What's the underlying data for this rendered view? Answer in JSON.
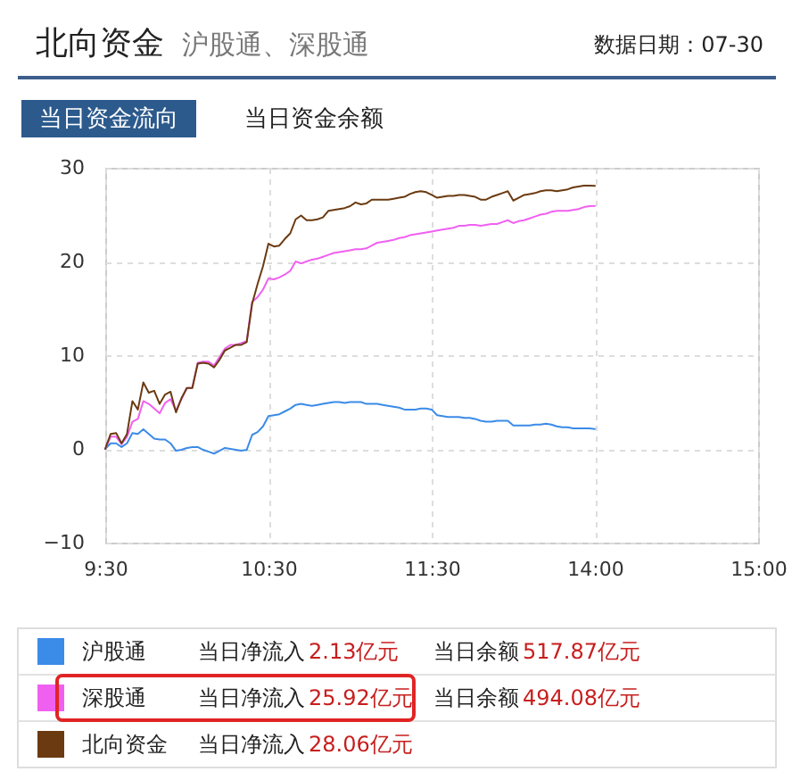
{
  "chart_data": {
    "type": "line",
    "title": "北向资金",
    "subtitle": "沪股通、深股通",
    "annotations": [
      "数据日期：07-30",
      "当日资金流向",
      "当日资金余额",
      "当日净流入",
      "2.13亿元",
      "当日余额",
      "517.87亿元",
      "当日净流入",
      "25.92亿元",
      "当日余额",
      "494.08亿元",
      "当日净流入",
      "28.06亿元"
    ],
    "categories": [
      "9:30",
      null,
      null,
      null,
      null,
      null,
      null,
      null,
      null,
      null,
      null,
      null,
      null,
      null,
      null,
      null,
      null,
      null,
      null,
      null,
      null,
      null,
      null,
      null,
      null,
      null,
      null,
      null,
      null,
      null,
      "10:30",
      null,
      null,
      null,
      null,
      null,
      null,
      null,
      null,
      null,
      null,
      null,
      null,
      null,
      null,
      null,
      null,
      null,
      null,
      null,
      null,
      null,
      null,
      null,
      null,
      null,
      null,
      null,
      null,
      null,
      "11:30",
      null,
      null,
      null,
      null,
      null,
      null,
      null,
      null,
      null,
      null,
      null,
      null,
      null,
      null,
      null,
      null,
      null,
      null,
      null,
      null,
      null,
      null,
      null,
      null,
      null,
      null,
      null,
      null,
      null,
      "14:00",
      null,
      null,
      null,
      null,
      null,
      null,
      null,
      null,
      null,
      null,
      null,
      null,
      null,
      null,
      null,
      null,
      null,
      null,
      null,
      null,
      null,
      null,
      null,
      null,
      null,
      null,
      null,
      null,
      null,
      "15:00"
    ],
    "ylim": [
      -10,
      30
    ],
    "yticks": [
      -10,
      0,
      10,
      20,
      30
    ],
    "grid": true,
    "legend": "bottom",
    "series": [
      {
        "name": "沪股通",
        "color": "#3b8be8",
        "values": [
          0,
          0.6,
          0.6,
          0.2,
          0.6,
          1.7,
          1.6,
          2.1,
          1.6,
          1.1,
          1.0,
          1.0,
          0.6,
          -0.2,
          -0.1,
          0.1,
          0.2,
          0.2,
          -0.1,
          -0.3,
          -0.5,
          -0.2,
          0.1,
          0,
          -0.1,
          -0.2,
          -0.1,
          1.5,
          1.8,
          2.4,
          3.5,
          3.6,
          3.7,
          4.0,
          4.3,
          4.7,
          4.8,
          4.7,
          4.6,
          4.7,
          4.8,
          4.9,
          5.0,
          5.0,
          4.9,
          5.0,
          5.0,
          5.0,
          4.8,
          4.8,
          4.8,
          4.7,
          4.6,
          4.5,
          4.4,
          4.2,
          4.2,
          4.2,
          4.3,
          4.3,
          4.2,
          3.6,
          3.5,
          3.4,
          3.4,
          3.4,
          3.3,
          3.3,
          3.2,
          3.0,
          2.9,
          2.9,
          3.0,
          3.0,
          3.0,
          2.5,
          2.5,
          2.5,
          2.5,
          2.6,
          2.6,
          2.7,
          2.6,
          2.4,
          2.3,
          2.3,
          2.2,
          2.2,
          2.2,
          2.2,
          2.13,
          null,
          null,
          null,
          null,
          null,
          null,
          null,
          null,
          null,
          null,
          null,
          null,
          null,
          null,
          null,
          null,
          null,
          null,
          null,
          null,
          null,
          null,
          null,
          null,
          null,
          null,
          null,
          null,
          null,
          null
        ]
      },
      {
        "name": "深股通",
        "color": "#f060f0",
        "values": [
          0,
          1.3,
          1.3,
          0.5,
          1.3,
          2.9,
          3.2,
          5.1,
          4.8,
          4.3,
          3.8,
          4.9,
          5.3,
          4.1,
          5.3,
          6.5,
          6.5,
          9.2,
          9.3,
          9.3,
          8.9,
          9.8,
          10.7,
          11.1,
          11.1,
          11.3,
          11.5,
          15.7,
          16.2,
          17.0,
          18.2,
          18.1,
          18.3,
          18.6,
          19.0,
          20.0,
          19.8,
          20.0,
          20.2,
          20.3,
          20.5,
          20.7,
          20.9,
          21.0,
          21.1,
          21.2,
          21.3,
          21.3,
          21.4,
          21.7,
          22.0,
          22.1,
          22.2,
          22.3,
          22.5,
          22.6,
          22.8,
          22.9,
          23.0,
          23.1,
          23.2,
          23.3,
          23.4,
          23.5,
          23.6,
          23.8,
          23.8,
          23.9,
          23.9,
          23.8,
          23.9,
          24.0,
          24.0,
          24.2,
          24.4,
          24.1,
          24.3,
          24.4,
          24.6,
          24.8,
          25.0,
          25.1,
          25.3,
          25.4,
          25.4,
          25.4,
          25.5,
          25.6,
          25.8,
          25.9,
          25.92,
          null,
          null,
          null,
          null,
          null,
          null,
          null,
          null,
          null,
          null,
          null,
          null,
          null,
          null,
          null,
          null,
          null,
          null,
          null,
          null,
          null,
          null,
          null,
          null,
          null,
          null,
          null,
          null,
          null,
          null
        ]
      },
      {
        "name": "北向资金",
        "color": "#6b3a10",
        "values": [
          0,
          1.6,
          1.7,
          0.6,
          1.6,
          5.1,
          4.2,
          7.1,
          6.0,
          6.2,
          4.8,
          5.8,
          6.1,
          3.9,
          5.4,
          6.5,
          6.5,
          9.1,
          9.2,
          9.1,
          8.7,
          9.5,
          10.5,
          10.8,
          11.1,
          11.1,
          11.4,
          15.5,
          17.6,
          19.5,
          21.9,
          21.6,
          21.7,
          22.4,
          23.0,
          24.5,
          24.9,
          24.4,
          24.4,
          24.5,
          24.7,
          25.4,
          25.5,
          25.6,
          25.7,
          25.9,
          26.3,
          26.1,
          26.2,
          26.6,
          26.6,
          26.6,
          26.6,
          26.7,
          26.8,
          26.9,
          27.2,
          27.4,
          27.5,
          27.4,
          27.1,
          26.8,
          26.9,
          27.0,
          27.0,
          27.1,
          27.1,
          27.0,
          26.9,
          26.6,
          26.6,
          26.9,
          27.1,
          27.3,
          27.5,
          26.5,
          26.8,
          27.1,
          27.2,
          27.3,
          27.5,
          27.6,
          27.6,
          27.5,
          27.6,
          27.7,
          27.9,
          28.0,
          28.1,
          28.1,
          28.06,
          null,
          null,
          null,
          null,
          null,
          null,
          null,
          null,
          null,
          null,
          null,
          null,
          null,
          null,
          null,
          null,
          null,
          null,
          null,
          null,
          null,
          null,
          null,
          null,
          null,
          null,
          null,
          null,
          null,
          null
        ]
      }
    ]
  }
}
